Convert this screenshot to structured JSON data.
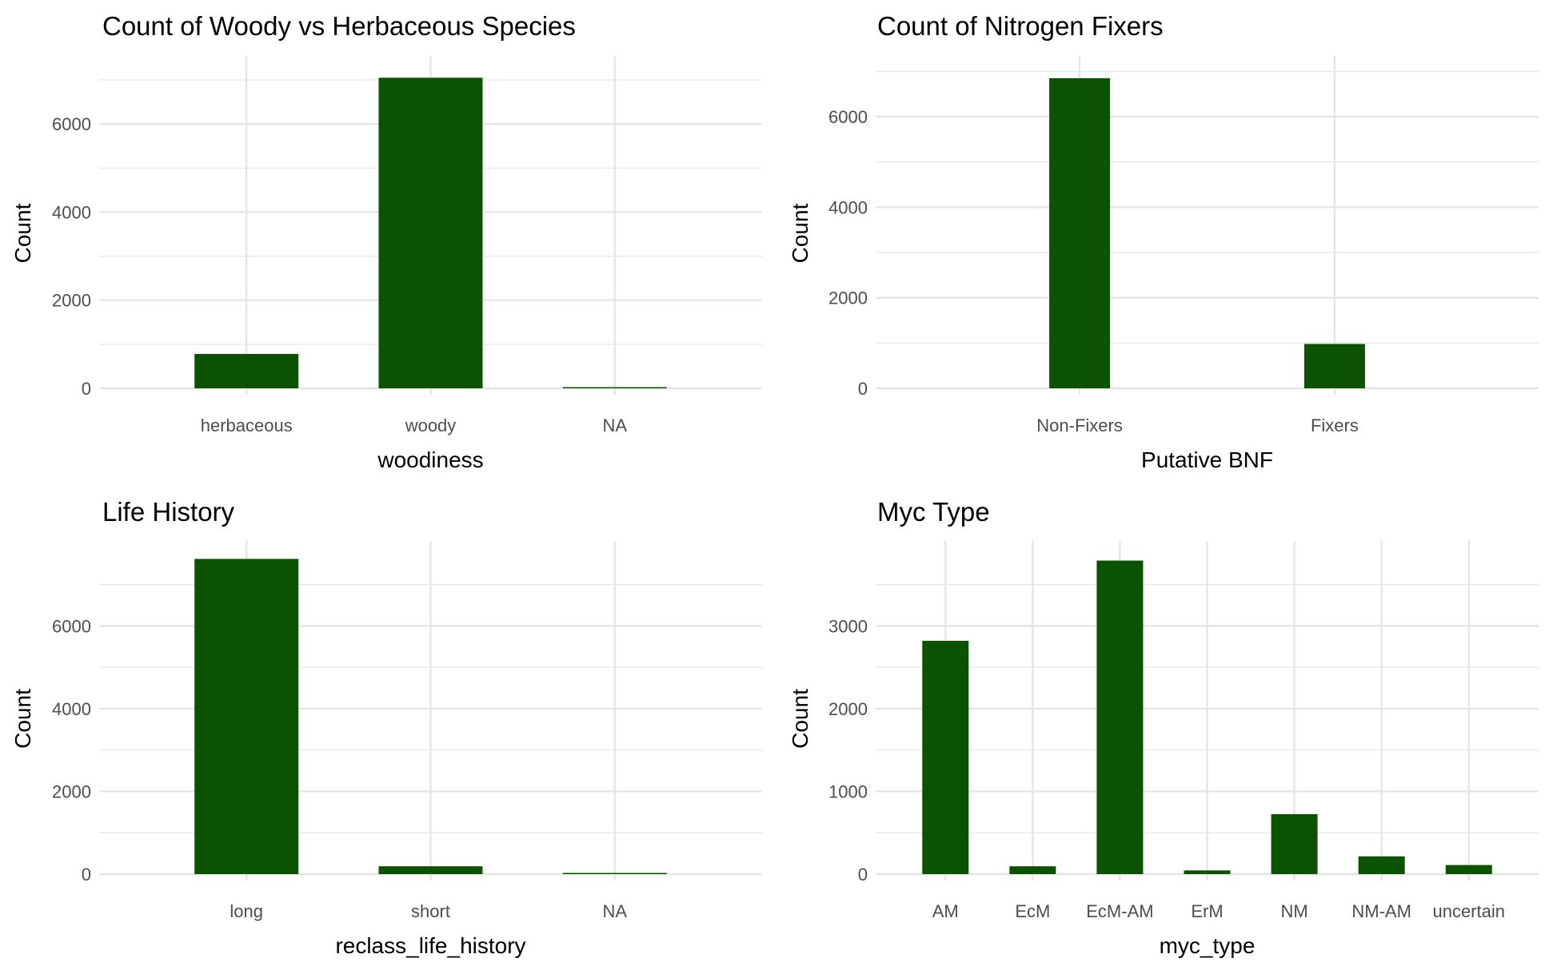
{
  "colors": {
    "bar": "#0b5203",
    "grid": "#e5e5e5",
    "text": "#000000",
    "tick_text": "#4d4d4d",
    "background": "#ffffff"
  },
  "chart_data": [
    {
      "type": "bar",
      "title": "Count of Woody vs Herbaceous Species",
      "xlabel": "woodiness",
      "ylabel": "Count",
      "categories": [
        "herbaceous",
        "woody",
        "NA"
      ],
      "values": [
        780,
        7050,
        10
      ],
      "yticks": [
        0,
        2000,
        4000,
        6000
      ],
      "ylim": [
        0,
        7400
      ],
      "grid": true
    },
    {
      "type": "bar",
      "title": "Count of Nitrogen Fixers",
      "xlabel": "Putative BNF",
      "ylabel": "Count",
      "categories": [
        "Non-Fixers",
        "Fixers"
      ],
      "values": [
        6850,
        980
      ],
      "yticks": [
        0,
        2000,
        4000,
        6000
      ],
      "ylim": [
        0,
        7200
      ],
      "grid": true
    },
    {
      "type": "bar",
      "title": "Life History",
      "xlabel": "reclass_life_history",
      "ylabel": "Count",
      "categories": [
        "long",
        "short",
        "NA"
      ],
      "values": [
        7620,
        190,
        10
      ],
      "yticks": [
        0,
        2000,
        4000,
        6000
      ],
      "ylim": [
        0,
        7900
      ],
      "grid": true
    },
    {
      "type": "bar",
      "title": "Myc Type",
      "xlabel": "myc_type",
      "ylabel": "Count",
      "categories": [
        "AM",
        "EcM",
        "EcM-AM",
        "ErM",
        "NM",
        "NM-AM",
        "uncertain"
      ],
      "values": [
        2820,
        95,
        3790,
        45,
        725,
        215,
        110
      ],
      "yticks": [
        0,
        1000,
        2000,
        3000
      ],
      "ylim": [
        0,
        3950
      ],
      "grid": true
    }
  ]
}
